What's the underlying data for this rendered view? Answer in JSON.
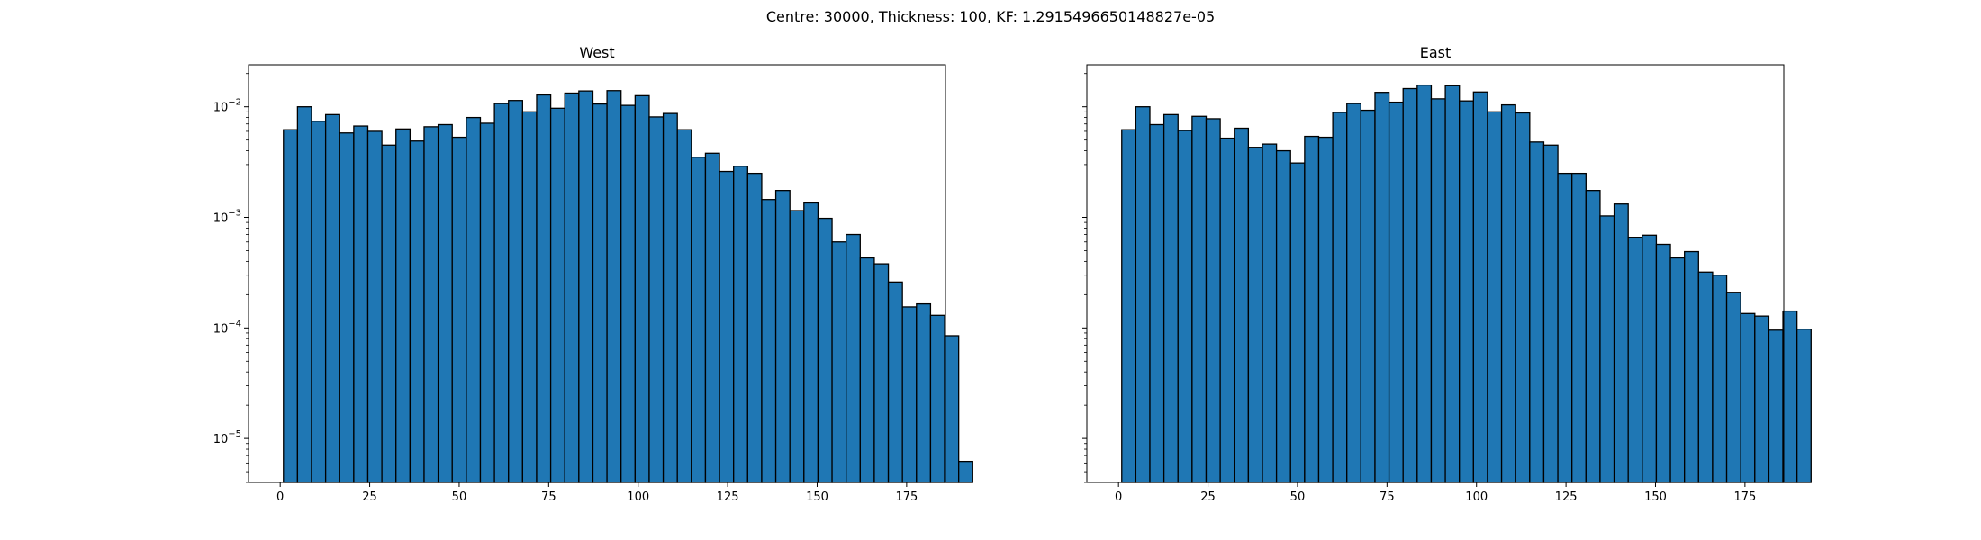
{
  "figure": {
    "suptitle": "Centre: 30000, Thickness: 100, KF: 1.2915496650148827e-05"
  },
  "colors": {
    "bar_fill": "#1f77b4",
    "bar_edge": "#000000"
  },
  "chart_data": [
    {
      "type": "bar",
      "title": "West",
      "xlabel": "",
      "ylabel": "",
      "yscale": "log",
      "xlim": [
        -8.85,
        185.85
      ],
      "ylim": [
        4e-06,
        0.024
      ],
      "xticks": [
        0,
        25,
        50,
        75,
        100,
        125,
        150,
        175
      ],
      "xtick_labels": [
        "0",
        "25",
        "50",
        "75",
        "100",
        "125",
        "150",
        "175"
      ],
      "yticks": [
        1e-05,
        0.0001,
        0.001,
        0.01
      ],
      "ytick_labels": [
        "10^-5",
        "10^-4",
        "10^-3",
        "10^-2"
      ],
      "bin_start": 0.9,
      "bin_width": 3.93,
      "grid": false,
      "values": [
        0.0062,
        0.01,
        0.0074,
        0.0085,
        0.0058,
        0.0067,
        0.006,
        0.0045,
        0.0063,
        0.0049,
        0.0066,
        0.0069,
        0.0053,
        0.008,
        0.0071,
        0.0107,
        0.0114,
        0.009,
        0.0128,
        0.0097,
        0.0133,
        0.0139,
        0.0106,
        0.014,
        0.0103,
        0.0126,
        0.0081,
        0.0087,
        0.0062,
        0.0035,
        0.0038,
        0.0026,
        0.0029,
        0.0025,
        0.00145,
        0.00175,
        0.00115,
        0.00135,
        0.00098,
        0.0006,
        0.0007,
        0.00043,
        0.00038,
        0.00026,
        0.000155,
        0.000165,
        0.00013,
        8.5e-05,
        6.2e-06
      ]
    },
    {
      "type": "bar",
      "title": "East",
      "xlabel": "",
      "ylabel": "",
      "yscale": "log",
      "xlim": [
        -8.85,
        185.85
      ],
      "ylim": [
        4e-06,
        0.024
      ],
      "xticks": [
        0,
        25,
        50,
        75,
        100,
        125,
        150,
        175
      ],
      "xtick_labels": [
        "0",
        "25",
        "50",
        "75",
        "100",
        "125",
        "150",
        "175"
      ],
      "yticks": [
        1e-05,
        0.0001,
        0.001,
        0.01
      ],
      "ytick_labels": [
        "",
        "",
        "",
        ""
      ],
      "bin_start": 0.9,
      "bin_width": 3.93,
      "grid": false,
      "values": [
        0.0062,
        0.01,
        0.0069,
        0.0085,
        0.0061,
        0.0082,
        0.0078,
        0.0052,
        0.0064,
        0.0043,
        0.0046,
        0.004,
        0.0031,
        0.0054,
        0.0053,
        0.0089,
        0.0107,
        0.0093,
        0.0135,
        0.011,
        0.0146,
        0.0157,
        0.0118,
        0.0155,
        0.0113,
        0.0136,
        0.009,
        0.0104,
        0.0088,
        0.0048,
        0.0045,
        0.0025,
        0.0025,
        0.00175,
        0.00103,
        0.00132,
        0.00066,
        0.00069,
        0.00057,
        0.00043,
        0.00049,
        0.00032,
        0.0003,
        0.00021,
        0.000135,
        0.000128,
        9.55e-05,
        0.000142,
        9.75e-05
      ]
    }
  ]
}
